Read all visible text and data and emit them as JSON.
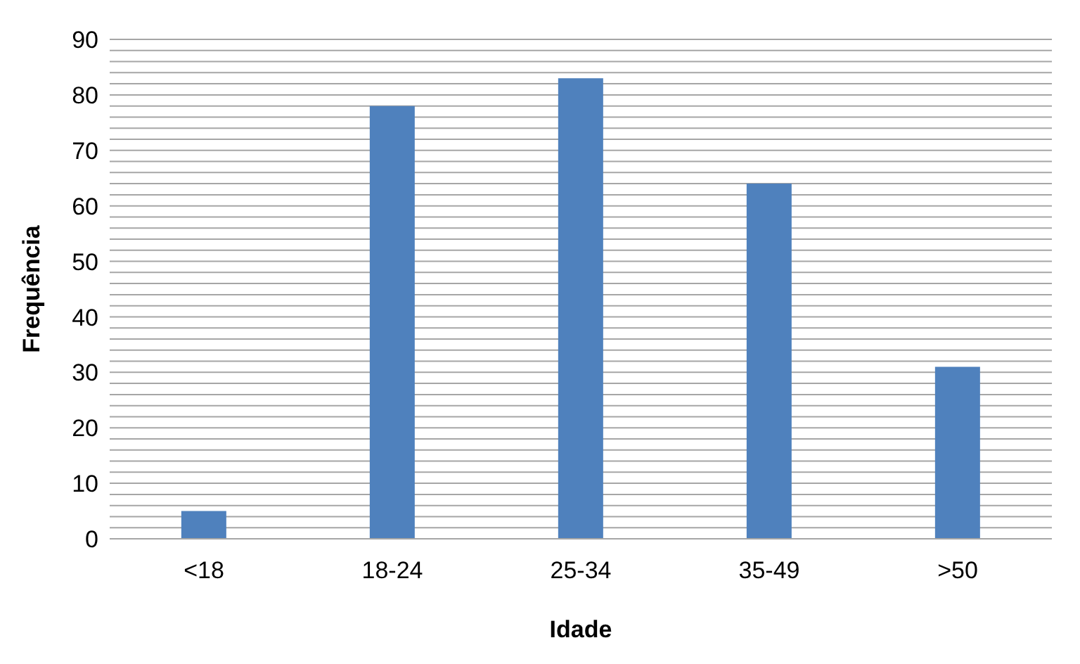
{
  "chart_data": {
    "type": "bar",
    "xlabel": "Idade",
    "ylabel": "Frequência",
    "categories": [
      "<18",
      "18-24",
      "25-34",
      "35-49",
      ">50"
    ],
    "values": [
      5,
      78,
      83,
      64,
      31
    ],
    "color": "#4f81bd",
    "ylim": [
      0,
      90
    ],
    "yticks": [
      0,
      {
        "value": 2,
        "label": null
      },
      {
        "value": 4,
        "label": null
      },
      {
        "value": 6,
        "label": null
      },
      {
        "value": 8,
        "label": null
      },
      10,
      {
        "value": 12,
        "label": null
      },
      {
        "value": 14,
        "label": null
      },
      {
        "value": 16,
        "label": null
      },
      {
        "value": 18,
        "label": null
      },
      20,
      {
        "value": 22,
        "label": null
      },
      {
        "value": 24,
        "label": null
      },
      {
        "value": 26,
        "label": null
      },
      {
        "value": 28,
        "label": null
      },
      30,
      {
        "value": 32,
        "label": null
      },
      {
        "value": 34,
        "label": null
      },
      {
        "value": 36,
        "label": null
      },
      {
        "value": 38,
        "label": null
      },
      40,
      {
        "value": 42,
        "label": null
      },
      {
        "value": 44,
        "label": null
      },
      {
        "value": 46,
        "label": null
      },
      {
        "value": 48,
        "label": null
      },
      50,
      {
        "value": 52,
        "label": null
      },
      {
        "value": 54,
        "label": null
      },
      {
        "value": 56,
        "label": null
      },
      {
        "value": 58,
        "label": null
      },
      60,
      {
        "value": 62,
        "label": null
      },
      {
        "value": 64,
        "label": null
      },
      {
        "value": 66,
        "label": null
      },
      {
        "value": 68,
        "label": null
      },
      70,
      {
        "value": 72,
        "label": null
      },
      {
        "value": 74,
        "label": null
      },
      {
        "value": 76,
        "label": null
      },
      {
        "value": 78,
        "label": null
      },
      80,
      {
        "value": 82,
        "label": null
      },
      {
        "value": 84,
        "label": null
      },
      {
        "value": 86,
        "label": null
      },
      {
        "value": 88,
        "label": null
      },
      90
    ],
    "grid": "y"
  }
}
